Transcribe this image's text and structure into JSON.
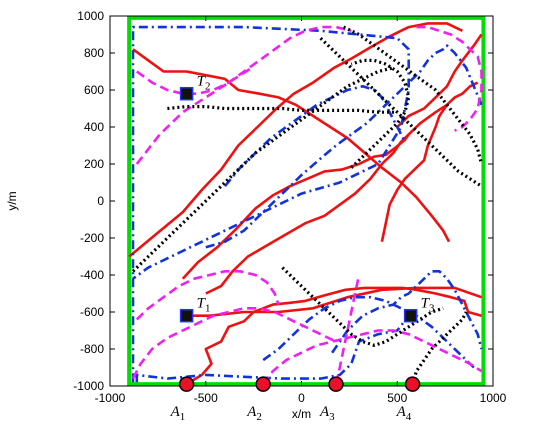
{
  "chart_data": {
    "type": "line",
    "title": "",
    "xlabel": "x/m",
    "ylabel": "y/m",
    "xlim": [
      -1000,
      1000
    ],
    "ylim": [
      -1000,
      1000
    ],
    "xticks": [
      -1000,
      -500,
      0,
      500,
      1000
    ],
    "yticks": [
      -1000,
      -800,
      -600,
      -400,
      -200,
      0,
      200,
      400,
      600,
      800,
      1000
    ],
    "grid": false,
    "legend": "none",
    "boundary": {
      "color": "#00dd00",
      "x": [
        -900,
        950
      ],
      "y": [
        -990,
        990
      ]
    },
    "colors": {
      "red": "#ee1111",
      "blue": "#1133dd",
      "magenta": "#ee22ee",
      "black": "#000000"
    },
    "targets": [
      {
        "label": "T",
        "sub": "1",
        "x": -600,
        "y": -620
      },
      {
        "label": "T",
        "sub": "2",
        "x": -600,
        "y": 580
      },
      {
        "label": "T",
        "sub": "3",
        "x": 570,
        "y": -620
      }
    ],
    "agents": [
      {
        "label": "A",
        "sub": "1",
        "x": -600,
        "y": -990
      },
      {
        "label": "A",
        "sub": "2",
        "x": -200,
        "y": -990
      },
      {
        "label": "A",
        "sub": "3",
        "x": 180,
        "y": -990
      },
      {
        "label": "A",
        "sub": "4",
        "x": 580,
        "y": -990
      }
    ],
    "series": [
      {
        "color": "red",
        "style": "solid",
        "x": [
          -600,
          -520,
          -470,
          -500,
          -420,
          -380,
          -300,
          -250,
          -200,
          -150,
          -60,
          20,
          120,
          230,
          330,
          430,
          530,
          600,
          700,
          780,
          850,
          870,
          940
        ],
        "y": [
          -990,
          -940,
          -880,
          -800,
          -760,
          -680,
          -650,
          -600,
          -580,
          -560,
          -550,
          -540,
          -510,
          -480,
          -470,
          -470,
          -470,
          -480,
          -500,
          -520,
          -540,
          -600,
          -620
        ]
      },
      {
        "color": "red",
        "style": "solid",
        "x": [
          -600,
          -480,
          -300,
          -120,
          60,
          240,
          420,
          600,
          800,
          940
        ],
        "y": [
          -620,
          -620,
          -600,
          -600,
          -580,
          -520,
          -480,
          -470,
          -470,
          -520
        ]
      },
      {
        "color": "red",
        "style": "solid",
        "x": [
          -900,
          -760,
          -620,
          -520,
          -420,
          -330,
          -230,
          -130,
          -40,
          60,
          170,
          260,
          360,
          460,
          560,
          660,
          760,
          840
        ],
        "y": [
          -300,
          -180,
          -60,
          60,
          170,
          300,
          400,
          500,
          580,
          640,
          720,
          770,
          830,
          890,
          940,
          960,
          960,
          920
        ]
      },
      {
        "color": "red",
        "style": "solid",
        "x": [
          -880,
          -800,
          -720,
          -600,
          -500,
          -400,
          -330,
          -220,
          -120,
          -30,
          60,
          150,
          240,
          330,
          420,
          520,
          600,
          680,
          740,
          770
        ],
        "y": [
          820,
          760,
          700,
          700,
          680,
          660,
          600,
          580,
          560,
          520,
          460,
          400,
          340,
          260,
          180,
          100,
          20,
          -80,
          -160,
          -220
        ]
      },
      {
        "color": "red",
        "style": "solid",
        "x": [
          -620,
          -540,
          -440,
          -340,
          -240,
          -150,
          -60,
          30,
          120,
          210,
          300,
          380,
          440,
          480,
          540,
          560
        ],
        "y": [
          -420,
          -330,
          -250,
          -150,
          -40,
          30,
          80,
          120,
          160,
          170,
          200,
          240,
          250,
          280,
          330,
          360
        ]
      },
      {
        "color": "red",
        "style": "solid",
        "x": [
          420,
          440,
          460,
          500,
          540,
          600,
          640,
          660,
          700,
          720,
          760,
          800,
          840,
          880,
          920
        ],
        "y": [
          -220,
          -120,
          -20,
          60,
          120,
          180,
          220,
          300,
          400,
          460,
          520,
          560,
          580,
          620,
          640
        ]
      },
      {
        "color": "red",
        "style": "solid",
        "x": [
          500,
          560,
          640,
          700,
          760,
          800,
          840,
          900,
          940
        ],
        "y": [
          400,
          460,
          500,
          560,
          620,
          700,
          760,
          840,
          900
        ]
      },
      {
        "color": "red",
        "style": "solid",
        "x": [
          -500,
          -420,
          -360,
          -280,
          -180,
          -80,
          20,
          120,
          200,
          280,
          360,
          420,
          480,
          520,
          560,
          620,
          700,
          760
        ],
        "y": [
          -500,
          -460,
          -380,
          -300,
          -240,
          -180,
          -120,
          -80,
          -20,
          40,
          120,
          200,
          260,
          320,
          360,
          420,
          480,
          520
        ]
      },
      {
        "color": "blue",
        "style": "dashdot",
        "x": [
          -880,
          -880,
          -700,
          -500,
          -300,
          -100,
          100,
          300,
          500,
          560,
          560,
          520,
          400,
          200,
          0,
          -200,
          -400,
          -600,
          -800,
          -880
        ],
        "y": [
          -980,
          940,
          940,
          940,
          940,
          930,
          920,
          900,
          880,
          820,
          600,
          400,
          200,
          100,
          40,
          -60,
          -160,
          -260,
          -360,
          -420
        ]
      },
      {
        "color": "blue",
        "style": "dashdot",
        "x": [
          -860,
          -860,
          -700,
          -500,
          -300,
          -100,
          100,
          200,
          260,
          300,
          400,
          500,
          560
        ],
        "y": [
          -980,
          -940,
          -960,
          -940,
          -950,
          -960,
          -960,
          -940,
          -880,
          -760,
          -720,
          -700,
          -620
        ]
      },
      {
        "color": "blue",
        "style": "dashdot",
        "x": [
          -500,
          -400,
          -300,
          -200,
          -100,
          0,
          100,
          180,
          260,
          340,
          400,
          460,
          520,
          580,
          620,
          660,
          700,
          740,
          760,
          800,
          860,
          900,
          940
        ],
        "y": [
          -250,
          -220,
          -160,
          -60,
          40,
          140,
          230,
          300,
          360,
          420,
          480,
          540,
          600,
          660,
          700,
          760,
          800,
          820,
          840,
          800,
          720,
          620,
          520
        ]
      },
      {
        "color": "blue",
        "style": "dashdot",
        "x": [
          160,
          240,
          320,
          400,
          480,
          520,
          560,
          600,
          640,
          680,
          720,
          760,
          800,
          840,
          880,
          920,
          940
        ],
        "y": [
          -820,
          -700,
          -620,
          -580,
          -560,
          -520,
          -500,
          -460,
          -420,
          -380,
          -380,
          -420,
          -480,
          -560,
          -640,
          -720,
          -800
        ]
      },
      {
        "color": "blue",
        "style": "dashdot",
        "x": [
          -400,
          -320,
          -240,
          -160,
          -80,
          0,
          80,
          160,
          240,
          320,
          380,
          420,
          460,
          500,
          540
        ],
        "y": [
          80,
          180,
          260,
          340,
          400,
          460,
          520,
          560,
          600,
          620,
          600,
          560,
          480,
          400,
          320
        ]
      },
      {
        "color": "blue",
        "style": "dashdot",
        "x": [
          -200,
          -120,
          -40,
          40,
          120,
          200,
          280,
          360,
          440,
          520,
          600,
          680,
          760,
          840,
          900
        ],
        "y": [
          -860,
          -800,
          -720,
          -640,
          -580,
          -540,
          -520,
          -520,
          -540,
          -580,
          -620,
          -680,
          -760,
          -840,
          -900
        ]
      },
      {
        "color": "magenta",
        "style": "dashed",
        "x": [
          -200,
          -150,
          -80,
          0,
          80,
          160,
          240,
          320,
          400,
          480,
          560,
          640,
          720,
          800,
          880,
          940
        ],
        "y": [
          -990,
          -920,
          -860,
          -820,
          -780,
          -760,
          -740,
          -720,
          -700,
          -700,
          -720,
          -760,
          -800,
          -840,
          -880,
          -920
        ]
      },
      {
        "color": "magenta",
        "style": "dashed",
        "x": [
          -860,
          -800,
          -720,
          -640,
          -560,
          -480,
          -400,
          -320,
          -240,
          -180,
          -140,
          -120
        ],
        "y": [
          -640,
          -580,
          -520,
          -460,
          -420,
          -400,
          -380,
          -380,
          -400,
          -440,
          -500,
          -560
        ]
      },
      {
        "color": "magenta",
        "style": "dashed",
        "x": [
          -860,
          -780,
          -700,
          -620,
          -540,
          -460,
          -380,
          -300,
          -220,
          -140,
          -60,
          20,
          100,
          180,
          260
        ],
        "y": [
          700,
          640,
          600,
          580,
          580,
          600,
          640,
          700,
          760,
          820,
          880,
          920,
          940,
          940,
          920
        ]
      },
      {
        "color": "magenta",
        "style": "dashed",
        "x": [
          -860,
          -800,
          -740,
          -680,
          -620,
          -560,
          -500,
          -440,
          -380,
          -320,
          -260
        ],
        "y": [
          200,
          280,
          360,
          420,
          480,
          520,
          560,
          600,
          640,
          680,
          720
        ]
      },
      {
        "color": "magenta",
        "style": "dashed",
        "x": [
          -880,
          -840,
          -780,
          -700,
          -620,
          -540,
          -460,
          -380,
          -300,
          -220,
          -140,
          -60,
          20,
          100,
          180
        ],
        "y": [
          -960,
          -880,
          -800,
          -740,
          -700,
          -660,
          -620,
          -600,
          -580,
          -580,
          -600,
          -640,
          -680,
          -720,
          -760
        ]
      },
      {
        "color": "magenta",
        "style": "dashed",
        "x": [
          600,
          660,
          720,
          780,
          840,
          880,
          920,
          940,
          940,
          920,
          880,
          840,
          800
        ],
        "y": [
          940,
          940,
          920,
          900,
          860,
          820,
          780,
          700,
          600,
          500,
          440,
          400,
          380
        ]
      },
      {
        "color": "magenta",
        "style": "dashed",
        "x": [
          180,
          200,
          220,
          240,
          260,
          280,
          300
        ],
        "y": [
          -990,
          -900,
          -800,
          -700,
          -600,
          -500,
          -400
        ]
      },
      {
        "color": "black",
        "style": "dotted",
        "x": [
          -880,
          -800,
          -720,
          -640,
          -560,
          -480,
          -400,
          -320,
          -240,
          -160,
          -80,
          0,
          80,
          160,
          240,
          320,
          400,
          480
        ],
        "y": [
          -380,
          -300,
          -220,
          -140,
          -60,
          20,
          100,
          180,
          260,
          320,
          380,
          440,
          500,
          560,
          620,
          660,
          700,
          720
        ]
      },
      {
        "color": "black",
        "style": "dotted",
        "x": [
          -700,
          -600,
          -500,
          -400,
          -300,
          -200,
          -100,
          0,
          100,
          200,
          300,
          400,
          500
        ],
        "y": [
          500,
          510,
          510,
          500,
          500,
          500,
          500,
          490,
          490,
          490,
          490,
          480,
          480
        ]
      },
      {
        "color": "black",
        "style": "dotted",
        "x": [
          100,
          160,
          220,
          280,
          340,
          400,
          460,
          520,
          580,
          640,
          700,
          760,
          820,
          880,
          940
        ],
        "y": [
          880,
          820,
          760,
          700,
          640,
          580,
          520,
          460,
          400,
          340,
          280,
          220,
          160,
          120,
          80
        ]
      },
      {
        "color": "black",
        "style": "dotted",
        "x": [
          220,
          300,
          380,
          460,
          540,
          620,
          700,
          760,
          820,
          880,
          920,
          940
        ],
        "y": [
          940,
          900,
          840,
          780,
          720,
          660,
          600,
          520,
          440,
          360,
          280,
          200
        ]
      },
      {
        "color": "black",
        "style": "dotted",
        "x": [
          -100,
          -40,
          20,
          80,
          140,
          200,
          260,
          320,
          380,
          440,
          500,
          560,
          620,
          680,
          740
        ],
        "y": [
          -360,
          -420,
          -480,
          -540,
          -600,
          -660,
          -720,
          -760,
          -780,
          -760,
          -720,
          -680,
          -640,
          -600,
          -580
        ]
      },
      {
        "color": "black",
        "style": "dotted",
        "x": [
          580,
          600,
          640,
          680,
          720,
          760,
          800,
          840,
          860
        ],
        "y": [
          -990,
          -920,
          -860,
          -800,
          -760,
          -720,
          -680,
          -640,
          -600
        ]
      },
      {
        "color": "black",
        "style": "dotted",
        "x": [
          260,
          320,
          380,
          440,
          500,
          540,
          560,
          540,
          500,
          440,
          380,
          320,
          260
        ],
        "y": [
          180,
          240,
          300,
          360,
          420,
          480,
          560,
          640,
          700,
          740,
          760,
          760,
          740
        ]
      }
    ]
  }
}
